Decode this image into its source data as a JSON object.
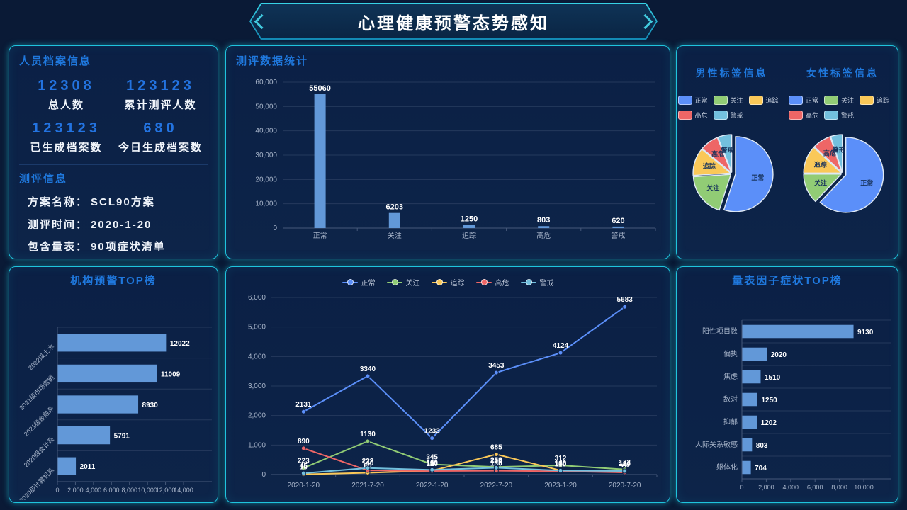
{
  "header": {
    "title": "心理健康预警态势感知"
  },
  "status_legend": {
    "labels": [
      "正常",
      "关注",
      "追踪",
      "高危",
      "警戒"
    ],
    "colors": [
      "#5b8ff9",
      "#91cc75",
      "#fac858",
      "#ee6666",
      "#73c0de"
    ]
  },
  "personnel": {
    "title": "人员档案信息",
    "stats": [
      {
        "value": "12308",
        "label": "总人数"
      },
      {
        "value": "123123",
        "label": "累计测评人数"
      },
      {
        "value": "123123",
        "label": "已生成档案数"
      },
      {
        "value": "680",
        "label": "今日生成档案数"
      }
    ],
    "assessment": {
      "title": "测评信息",
      "fields": [
        {
          "label": "方案名称：",
          "value": "SCL90方案"
        },
        {
          "label": "测评时间：",
          "value": "2020-1-20"
        },
        {
          "label": "包含量表：",
          "value": "90项症状清单"
        }
      ]
    }
  },
  "chart_data": [
    {
      "id": "assessment_bar",
      "type": "bar",
      "title": "测评数据统计",
      "categories": [
        "正常",
        "关注",
        "追踪",
        "高危",
        "警戒"
      ],
      "values": [
        55060,
        6203,
        1250,
        803,
        620
      ],
      "bar_color": "#6298d8",
      "ylim": [
        0,
        60000
      ],
      "yticks": [
        "0",
        "10,000",
        "20,000",
        "30,000",
        "40,000",
        "50,000",
        "60,000"
      ]
    },
    {
      "id": "male_pie",
      "type": "pie",
      "title": "男性标签信息",
      "labels": [
        "正常",
        "关注",
        "追踪",
        "高危",
        "警戒"
      ],
      "values": [
        55,
        19,
        12,
        8,
        6
      ]
    },
    {
      "id": "female_pie",
      "type": "pie",
      "title": "女性标签信息",
      "labels": [
        "正常",
        "关注",
        "追踪",
        "高危",
        "警戒"
      ],
      "values": [
        62,
        13,
        12,
        8,
        5
      ]
    },
    {
      "id": "org_bar",
      "type": "bar",
      "orientation": "horizontal",
      "title": "机构预警TOP榜",
      "categories": [
        "2022级土木",
        "2021级市场营销",
        "2021级金融系",
        "2020级会计系",
        "2020级计算机系"
      ],
      "values": [
        12022,
        11009,
        8930,
        5791,
        2011
      ],
      "bar_color": "#6298d8",
      "xlim": [
        0,
        14000
      ],
      "xticks": [
        "0",
        "2,000",
        "4,000",
        "6,000",
        "8,000",
        "10,000",
        "12,000",
        "14,000"
      ]
    },
    {
      "id": "trend_line",
      "type": "line",
      "title": "",
      "x": [
        "2020-1-20",
        "2021-7-20",
        "2022-1-20",
        "2022-7-20",
        "2023-1-20",
        "2020-7-20"
      ],
      "series": [
        {
          "name": "正常",
          "color": "#5b8ff9",
          "values": [
            2131,
            3340,
            1233,
            3453,
            4124,
            5683
          ]
        },
        {
          "name": "关注",
          "color": "#91cc75",
          "values": [
            223,
            1130,
            345,
            258,
            312,
            173
          ]
        },
        {
          "name": "追踪",
          "color": "#fac858",
          "values": [
            10,
            60,
            130,
            685,
            140,
            75
          ]
        },
        {
          "name": "高危",
          "color": "#ee6666",
          "values": [
            890,
            140,
            120,
            130,
            110,
            72
          ]
        },
        {
          "name": "警戒",
          "color": "#73c0de",
          "values": [
            45,
            222,
            160,
            230,
            136,
            120
          ]
        }
      ],
      "ylim": [
        0,
        6000
      ],
      "yticks": [
        "0",
        "1,000",
        "2,000",
        "3,000",
        "4,000",
        "5,000",
        "6,000"
      ],
      "legend_position": "top"
    },
    {
      "id": "factor_bar",
      "type": "bar",
      "orientation": "horizontal",
      "title": "量表因子症状TOP榜",
      "categories": [
        "阳性项目数",
        "偏执",
        "焦虑",
        "敌对",
        "抑郁",
        "人际关系敏感",
        "躯体化"
      ],
      "values": [
        9130,
        2020,
        1510,
        1250,
        1202,
        803,
        704
      ],
      "bar_color": "#6298d8",
      "xlim": [
        0,
        10000
      ],
      "xticks": [
        "0",
        "2,000",
        "4,000",
        "6,000",
        "8,000",
        "10,000"
      ]
    }
  ]
}
